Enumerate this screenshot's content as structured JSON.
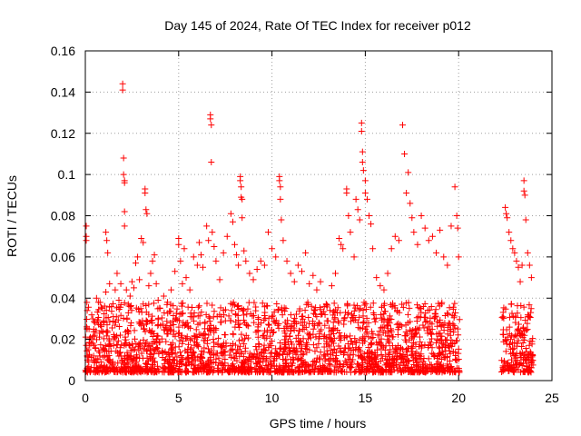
{
  "chart_data": {
    "type": "scatter",
    "title": "Day 145 of 2024, Rate Of TEC Index for receiver p012",
    "xlabel": "GPS time / hours",
    "ylabel": "ROTI / TECUs",
    "xlim": [
      0,
      25
    ],
    "ylim": [
      0,
      0.16
    ],
    "xticks": [
      0,
      5,
      10,
      15,
      20,
      25
    ],
    "xtick_labels": [
      "0",
      "5",
      "10",
      "15",
      "20",
      "25"
    ],
    "yticks": [
      0,
      0.02,
      0.04,
      0.06,
      0.08,
      0.1,
      0.12,
      0.14,
      0.16
    ],
    "ytick_labels": [
      "0",
      "0.02",
      "0.04",
      "0.06",
      "0.08",
      "0.1",
      "0.12",
      "0.14",
      "0.16"
    ],
    "grid": true,
    "marker": "plus",
    "color": "#ff0000",
    "series": [
      {
        "name": "",
        "points": [
          [
            0.05,
            0.075
          ],
          [
            0.05,
            0.07
          ],
          [
            0.05,
            0.068
          ],
          [
            0.1,
            0.034
          ],
          [
            0.1,
            0.012
          ],
          [
            0.2,
            0.025
          ],
          [
            0.3,
            0.018
          ],
          [
            0.4,
            0.03
          ],
          [
            0.5,
            0.022
          ],
          [
            0.6,
            0.04
          ],
          [
            0.7,
            0.038
          ],
          [
            0.8,
            0.027
          ],
          [
            0.9,
            0.035
          ],
          [
            1.0,
            0.029
          ],
          [
            1.1,
            0.043
          ],
          [
            1.1,
            0.072
          ],
          [
            1.15,
            0.068
          ],
          [
            1.2,
            0.062
          ],
          [
            1.3,
            0.047
          ],
          [
            1.4,
            0.036
          ],
          [
            1.5,
            0.031
          ],
          [
            1.6,
            0.044
          ],
          [
            1.7,
            0.052
          ],
          [
            1.8,
            0.039
          ],
          [
            1.9,
            0.047
          ],
          [
            2.0,
            0.144
          ],
          [
            2.0,
            0.141
          ],
          [
            2.05,
            0.108
          ],
          [
            2.05,
            0.1
          ],
          [
            2.1,
            0.097
          ],
          [
            2.1,
            0.096
          ],
          [
            2.1,
            0.082
          ],
          [
            2.1,
            0.075
          ],
          [
            2.2,
            0.044
          ],
          [
            2.3,
            0.037
          ],
          [
            2.4,
            0.041
          ],
          [
            2.5,
            0.048
          ],
          [
            2.6,
            0.045
          ],
          [
            2.7,
            0.057
          ],
          [
            2.8,
            0.06
          ],
          [
            2.9,
            0.049
          ],
          [
            3.0,
            0.069
          ],
          [
            3.1,
            0.067
          ],
          [
            3.2,
            0.093
          ],
          [
            3.2,
            0.091
          ],
          [
            3.25,
            0.083
          ],
          [
            3.3,
            0.081
          ],
          [
            3.4,
            0.046
          ],
          [
            3.5,
            0.052
          ],
          [
            3.6,
            0.058
          ],
          [
            3.7,
            0.061
          ],
          [
            3.8,
            0.047
          ],
          [
            3.9,
            0.039
          ],
          [
            4.0,
            0.035
          ],
          [
            4.2,
            0.041
          ],
          [
            4.4,
            0.038
          ],
          [
            4.6,
            0.044
          ],
          [
            4.8,
            0.053
          ],
          [
            5.0,
            0.069
          ],
          [
            5.0,
            0.066
          ],
          [
            5.1,
            0.058
          ],
          [
            5.2,
            0.047
          ],
          [
            5.3,
            0.064
          ],
          [
            5.4,
            0.05
          ],
          [
            5.6,
            0.044
          ],
          [
            5.8,
            0.06
          ],
          [
            6.0,
            0.056
          ],
          [
            6.1,
            0.067
          ],
          [
            6.2,
            0.061
          ],
          [
            6.3,
            0.055
          ],
          [
            6.5,
            0.075
          ],
          [
            6.6,
            0.068
          ],
          [
            6.7,
            0.129
          ],
          [
            6.7,
            0.127
          ],
          [
            6.75,
            0.124
          ],
          [
            6.75,
            0.106
          ],
          [
            6.8,
            0.072
          ],
          [
            6.9,
            0.065
          ],
          [
            7.0,
            0.058
          ],
          [
            7.2,
            0.049
          ],
          [
            7.4,
            0.062
          ],
          [
            7.6,
            0.07
          ],
          [
            7.8,
            0.081
          ],
          [
            7.9,
            0.077
          ],
          [
            8.0,
            0.066
          ],
          [
            8.1,
            0.061
          ],
          [
            8.2,
            0.056
          ],
          [
            8.3,
            0.099
          ],
          [
            8.3,
            0.097
          ],
          [
            8.35,
            0.094
          ],
          [
            8.35,
            0.089
          ],
          [
            8.4,
            0.088
          ],
          [
            8.4,
            0.079
          ],
          [
            8.5,
            0.063
          ],
          [
            8.6,
            0.058
          ],
          [
            8.8,
            0.052
          ],
          [
            9.0,
            0.049
          ],
          [
            9.2,
            0.054
          ],
          [
            9.4,
            0.058
          ],
          [
            9.6,
            0.056
          ],
          [
            9.8,
            0.072
          ],
          [
            10.0,
            0.064
          ],
          [
            10.2,
            0.06
          ],
          [
            10.4,
            0.099
          ],
          [
            10.4,
            0.097
          ],
          [
            10.45,
            0.094
          ],
          [
            10.45,
            0.088
          ],
          [
            10.5,
            0.078
          ],
          [
            10.6,
            0.068
          ],
          [
            10.8,
            0.058
          ],
          [
            11.0,
            0.052
          ],
          [
            11.2,
            0.048
          ],
          [
            11.4,
            0.056
          ],
          [
            11.6,
            0.053
          ],
          [
            11.8,
            0.062
          ],
          [
            12.0,
            0.047
          ],
          [
            12.2,
            0.051
          ],
          [
            12.4,
            0.044
          ],
          [
            12.6,
            0.048
          ],
          [
            12.8,
            0.036
          ],
          [
            13.0,
            0.029
          ],
          [
            13.2,
            0.046
          ],
          [
            13.4,
            0.052
          ],
          [
            13.6,
            0.069
          ],
          [
            13.7,
            0.066
          ],
          [
            13.8,
            0.064
          ],
          [
            14.0,
            0.093
          ],
          [
            14.0,
            0.091
          ],
          [
            14.1,
            0.08
          ],
          [
            14.2,
            0.072
          ],
          [
            14.4,
            0.06
          ],
          [
            14.5,
            0.088
          ],
          [
            14.6,
            0.083
          ],
          [
            14.7,
            0.078
          ],
          [
            14.8,
            0.125
          ],
          [
            14.8,
            0.121
          ],
          [
            14.85,
            0.111
          ],
          [
            14.85,
            0.106
          ],
          [
            14.9,
            0.102
          ],
          [
            15.0,
            0.097
          ],
          [
            15.0,
            0.091
          ],
          [
            15.1,
            0.088
          ],
          [
            15.2,
            0.08
          ],
          [
            15.3,
            0.076
          ],
          [
            15.4,
            0.064
          ],
          [
            15.6,
            0.05
          ],
          [
            15.8,
            0.046
          ],
          [
            16.0,
            0.044
          ],
          [
            16.2,
            0.052
          ],
          [
            16.4,
            0.064
          ],
          [
            16.6,
            0.07
          ],
          [
            16.8,
            0.068
          ],
          [
            17.0,
            0.124
          ],
          [
            17.1,
            0.11
          ],
          [
            17.2,
            0.091
          ],
          [
            17.3,
            0.101
          ],
          [
            17.4,
            0.086
          ],
          [
            17.5,
            0.079
          ],
          [
            17.6,
            0.072
          ],
          [
            17.8,
            0.066
          ],
          [
            18.0,
            0.08
          ],
          [
            18.2,
            0.074
          ],
          [
            18.4,
            0.068
          ],
          [
            18.6,
            0.07
          ],
          [
            18.8,
            0.062
          ],
          [
            19.0,
            0.073
          ],
          [
            19.2,
            0.06
          ],
          [
            19.4,
            0.056
          ],
          [
            19.6,
            0.075
          ],
          [
            19.8,
            0.094
          ],
          [
            19.9,
            0.08
          ],
          [
            19.95,
            0.074
          ],
          [
            20.0,
            0.06
          ],
          [
            22.5,
            0.084
          ],
          [
            22.55,
            0.081
          ],
          [
            22.6,
            0.079
          ],
          [
            22.7,
            0.072
          ],
          [
            22.8,
            0.068
          ],
          [
            22.9,
            0.064
          ],
          [
            23.0,
            0.062
          ],
          [
            23.1,
            0.058
          ],
          [
            23.2,
            0.055
          ],
          [
            23.3,
            0.048
          ],
          [
            23.4,
            0.056
          ],
          [
            23.5,
            0.097
          ],
          [
            23.5,
            0.092
          ],
          [
            23.55,
            0.09
          ],
          [
            23.6,
            0.078
          ],
          [
            23.7,
            0.062
          ],
          [
            23.8,
            0.056
          ],
          [
            23.9,
            0.05
          ]
        ]
      }
    ]
  }
}
